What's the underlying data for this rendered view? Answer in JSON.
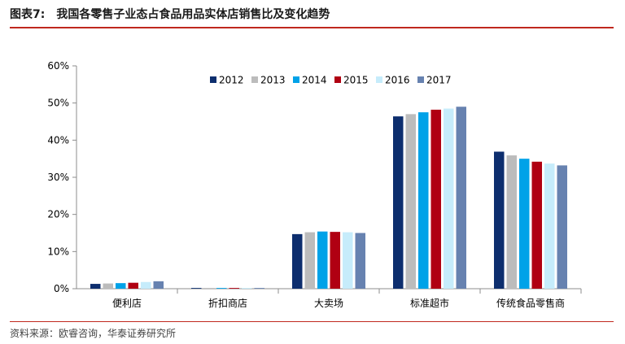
{
  "figure": {
    "label": "图表7:",
    "title": "我国各零售子业态占食品用品实体店销售比及变化趋势",
    "source": "资料来源：欧睿咨询，华泰证券研究所"
  },
  "colors": {
    "rule": "#c0281e",
    "axis": "#8c8c8c"
  },
  "chart_data": {
    "type": "bar",
    "title": "",
    "xlabel": "",
    "ylabel": "",
    "ylim": [
      0,
      60
    ],
    "yticks": [
      0,
      10,
      20,
      30,
      40,
      50,
      60
    ],
    "ytick_labels": [
      "0%",
      "10%",
      "20%",
      "30%",
      "40%",
      "50%",
      "60%"
    ],
    "grid": false,
    "legend_position": "top-center",
    "categories": [
      "便利店",
      "折扣商店",
      "大卖场",
      "标准超市",
      "传统食品零售商"
    ],
    "series": [
      {
        "name": "2012",
        "color": "#0d2e6e",
        "values": [
          1.3,
          0.2,
          14.7,
          46.4,
          36.9
        ]
      },
      {
        "name": "2013",
        "color": "#bcbcbc",
        "values": [
          1.4,
          0.2,
          15.2,
          47.0,
          35.9
        ]
      },
      {
        "name": "2014",
        "color": "#00a2e8",
        "values": [
          1.5,
          0.2,
          15.4,
          47.5,
          35.0
        ]
      },
      {
        "name": "2015",
        "color": "#b00012",
        "values": [
          1.6,
          0.2,
          15.3,
          48.2,
          34.2
        ]
      },
      {
        "name": "2016",
        "color": "#c6ecfb",
        "values": [
          1.8,
          0.2,
          15.2,
          48.5,
          33.7
        ]
      },
      {
        "name": "2017",
        "color": "#6782b0",
        "values": [
          2.0,
          0.2,
          15.0,
          49.0,
          33.2
        ]
      }
    ]
  }
}
